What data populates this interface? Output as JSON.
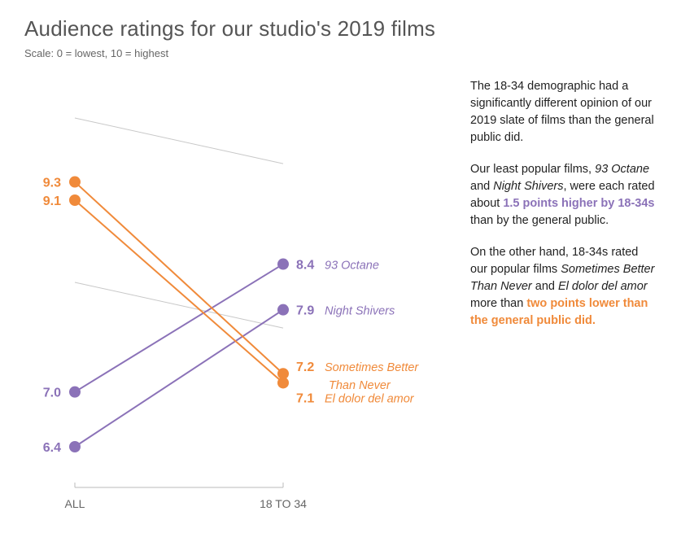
{
  "header": {
    "title": "Audience ratings for our studio's 2019 films",
    "subtitle": "Scale: 0 = lowest, 10 = highest"
  },
  "annotation": {
    "p1": "The 18-34 demographic had a significantly different opinion of our 2019 slate of films than the general public did.",
    "p2_pre": "Our least popular films, ",
    "p2_film1": "93 Octane",
    "p2_and": " and ",
    "p2_film2": "Night Shivers",
    "p2_mid": ", were each rated about ",
    "p2_highlight": "1.5 points higher by 18-34s",
    "p2_post": " than by the general public.",
    "p3_pre": "On the other hand, 18-34s rated our popular films ",
    "p3_film1": "Sometimes Better Than Never",
    "p3_and": " and ",
    "p3_film2": "El dolor del amor",
    "p3_mid": " more than ",
    "p3_highlight": "two points lower than the general public did."
  },
  "colors": {
    "purple": "#8B72B8",
    "orange": "#F08A3A",
    "gray_line": "#C8C8C8",
    "axis": "#BBBBBB",
    "axis_text": "#666666"
  },
  "chart_data": {
    "type": "line",
    "x": [
      "ALL",
      "18 TO 34"
    ],
    "series": [
      {
        "name": "93 Octane",
        "values": [
          7.0,
          8.4
        ],
        "color": "purple",
        "left_label": "7.0",
        "right_label": "8.4",
        "right_name": [
          "93 Octane"
        ]
      },
      {
        "name": "Night Shivers",
        "values": [
          6.4,
          7.9
        ],
        "color": "purple",
        "left_label": "6.4",
        "right_label": "7.9",
        "right_name": [
          "Night Shivers"
        ]
      },
      {
        "name": "Sometimes Better Than Never",
        "values": [
          9.3,
          7.2
        ],
        "color": "orange",
        "left_label": "9.3",
        "right_label": "7.2",
        "right_name": [
          "Sometimes Better",
          "Than Never"
        ]
      },
      {
        "name": "El dolor del amor",
        "values": [
          9.1,
          7.1
        ],
        "color": "orange",
        "left_label": "9.1",
        "right_label": "7.1",
        "right_name": [
          "El dolor del amor"
        ]
      }
    ],
    "background_series": [
      {
        "values": [
          10.0,
          9.5
        ]
      },
      {
        "values": [
          8.2,
          7.7
        ]
      }
    ],
    "grid": false,
    "legend": "none"
  }
}
